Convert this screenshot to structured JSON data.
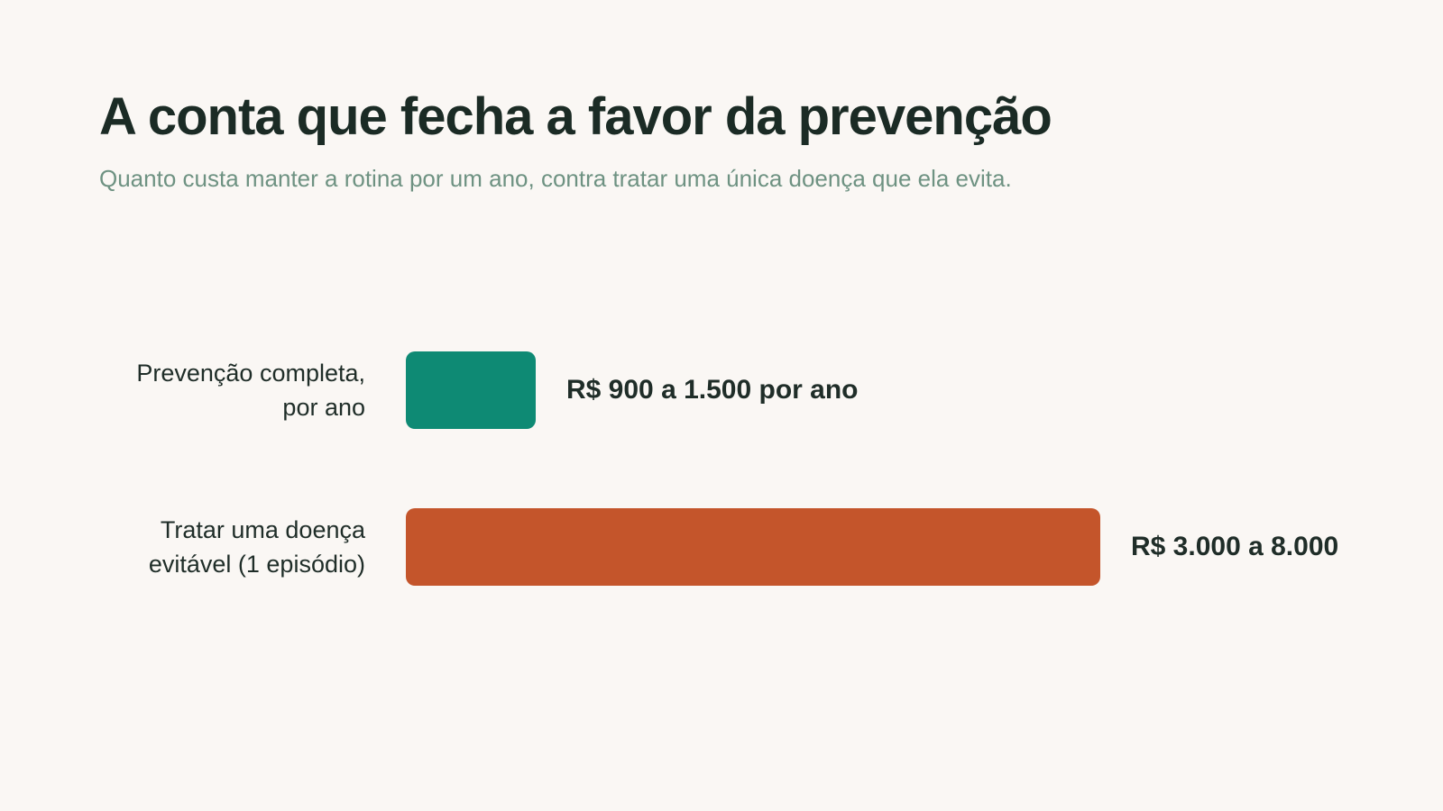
{
  "title": "A conta que fecha a favor da prevenção",
  "subtitle": "Quanto custa manter a rotina por um ano, contra tratar uma única doença que ela evita.",
  "chart_data": {
    "type": "bar",
    "orientation": "horizontal",
    "categories": [
      "Prevenção completa, por ano",
      "Tratar uma doença evitável (1 episódio)"
    ],
    "category_lines": [
      [
        "Prevenção completa,",
        "por ano"
      ],
      [
        "Tratar uma doença",
        "evitável (1 episódio)"
      ]
    ],
    "value_ranges": [
      [
        900,
        1500
      ],
      [
        3000,
        8000
      ]
    ],
    "values": [
      1500,
      8000
    ],
    "data_labels": [
      "R$ 900 a 1.500 por ano",
      "R$ 3.000 a 8.000"
    ],
    "colors": [
      "#0e8a74",
      "#c4552b"
    ],
    "xlim": [
      0,
      8500
    ],
    "grid": false,
    "legend": "none"
  }
}
